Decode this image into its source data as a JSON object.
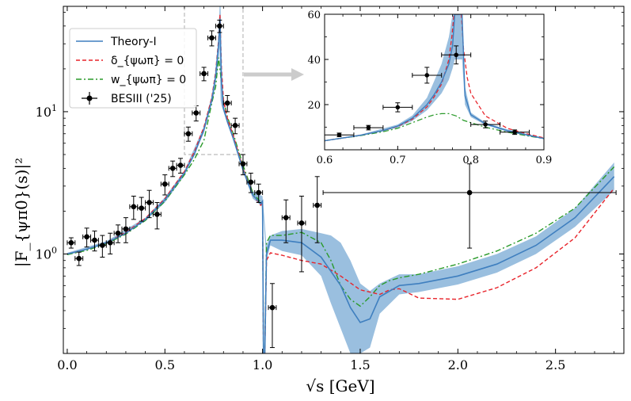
{
  "colors": {
    "theory": "#3f7fbf",
    "band": "#8fb8dc",
    "delta": "#e8232a",
    "w": "#2a9a2a",
    "data": "#000000",
    "guide": "#bbbbbb",
    "arrow": "#cccccc"
  },
  "chart_data": [
    {
      "type": "line",
      "xlabel": "√s [GeV]",
      "ylabel": "|F_{ψπ0}(s)|²",
      "xlim": [
        -0.02,
        2.85
      ],
      "ylim": [
        0.2,
        55
      ],
      "yscale": "log",
      "xticks": [
        0.0,
        0.5,
        1.0,
        1.5,
        2.0,
        2.5
      ],
      "xtick_labels": [
        "0.0",
        "0.5",
        "1.0",
        "1.5",
        "2.0",
        "2.5"
      ],
      "yticks": [
        1,
        10
      ],
      "ytick_labels": [
        "10^0",
        "10^1"
      ],
      "legend": {
        "position": "upper-left",
        "entries": [
          {
            "label": "Theory-I",
            "style": "solid",
            "series": "theory"
          },
          {
            "label": "δ_{ψωπ} = 0",
            "style": "dashed",
            "series": "delta"
          },
          {
            "label": "w_{ψωπ} = 0",
            "style": "dashdot",
            "series": "w"
          },
          {
            "label": "BESIII ('25)",
            "style": "errorbar",
            "series": "data"
          }
        ]
      },
      "series": [
        {
          "name": "Theory-I",
          "x": [
            0.0,
            0.1,
            0.2,
            0.3,
            0.4,
            0.5,
            0.6,
            0.65,
            0.7,
            0.74,
            0.76,
            0.775,
            0.782,
            0.79,
            0.8,
            0.82,
            0.85,
            0.9,
            0.95,
            0.99,
            1.0,
            1.005,
            1.01,
            1.02,
            1.04,
            1.1,
            1.2,
            1.3,
            1.4,
            1.45,
            1.5,
            1.55,
            1.6,
            1.7,
            1.8,
            2.0,
            2.2,
            2.4,
            2.6,
            2.8
          ],
          "y": [
            1.0,
            1.08,
            1.2,
            1.4,
            1.75,
            2.4,
            3.7,
            5.0,
            7.5,
            12.0,
            18.0,
            30.0,
            45.0,
            16.0,
            10.5,
            8.5,
            6.5,
            3.9,
            2.6,
            2.25,
            2.35,
            0.15,
            0.15,
            1.0,
            1.25,
            1.25,
            1.2,
            0.95,
            0.6,
            0.42,
            0.33,
            0.35,
            0.5,
            0.6,
            0.62,
            0.7,
            0.85,
            1.15,
            1.8,
            3.5
          ]
        },
        {
          "name": "δ_{ψωπ} = 0",
          "x": [
            0.0,
            0.1,
            0.2,
            0.3,
            0.4,
            0.5,
            0.6,
            0.65,
            0.7,
            0.74,
            0.76,
            0.775,
            0.782,
            0.79,
            0.8,
            0.82,
            0.85,
            0.9,
            0.95,
            0.99,
            1.0,
            1.005,
            1.01,
            1.02,
            1.04,
            1.1,
            1.2,
            1.3,
            1.4,
            1.5,
            1.6,
            1.65,
            1.7,
            1.8,
            2.0,
            2.2,
            2.4,
            2.6,
            2.8
          ],
          "y": [
            1.0,
            1.08,
            1.2,
            1.42,
            1.78,
            2.45,
            3.8,
            5.2,
            7.8,
            12.5,
            19.0,
            32.0,
            48.0,
            20.0,
            12.0,
            9.0,
            6.8,
            4.0,
            2.6,
            2.2,
            2.3,
            0.15,
            0.15,
            0.9,
            1.02,
            0.98,
            0.9,
            0.85,
            0.7,
            0.56,
            0.52,
            0.56,
            0.57,
            0.49,
            0.48,
            0.58,
            0.8,
            1.3,
            2.9
          ]
        },
        {
          "name": "w_{ψωπ} = 0",
          "x": [
            0.0,
            0.1,
            0.2,
            0.3,
            0.4,
            0.5,
            0.6,
            0.65,
            0.7,
            0.74,
            0.76,
            0.775,
            0.79,
            0.8,
            0.82,
            0.85,
            0.9,
            0.95,
            0.99,
            1.0,
            1.005,
            1.01,
            1.02,
            1.04,
            1.1,
            1.2,
            1.3,
            1.35,
            1.4,
            1.45,
            1.5,
            1.55,
            1.6,
            1.65,
            1.7,
            1.8,
            2.0,
            2.2,
            2.4,
            2.6,
            2.8
          ],
          "y": [
            0.99,
            1.06,
            1.18,
            1.38,
            1.72,
            2.35,
            3.6,
            4.6,
            6.3,
            11.5,
            15.0,
            24.0,
            16.0,
            12.0,
            9.2,
            7.0,
            4.2,
            2.7,
            2.3,
            2.3,
            0.15,
            0.15,
            1.2,
            1.35,
            1.35,
            1.42,
            1.2,
            0.9,
            0.6,
            0.48,
            0.43,
            0.5,
            0.6,
            0.65,
            0.68,
            0.72,
            0.85,
            1.05,
            1.4,
            2.1,
            4.1
          ]
        },
        {
          "name": "BESIII ('25)",
          "x": [
            0.02,
            0.06,
            0.1,
            0.14,
            0.18,
            0.22,
            0.26,
            0.3,
            0.34,
            0.38,
            0.42,
            0.46,
            0.5,
            0.54,
            0.58,
            0.62,
            0.66,
            0.7,
            0.74,
            0.78,
            0.82,
            0.86,
            0.9,
            0.94,
            0.98,
            1.05,
            1.12,
            1.2,
            1.28,
            2.06
          ],
          "y": [
            1.2,
            0.93,
            1.32,
            1.25,
            1.15,
            1.2,
            1.4,
            1.5,
            2.15,
            2.1,
            2.3,
            1.9,
            3.1,
            4.0,
            4.2,
            7.0,
            9.8,
            18.5,
            33.0,
            40.0,
            11.5,
            8.0,
            4.3,
            3.2,
            2.7,
            0.42,
            1.8,
            1.65,
            2.2,
            2.7
          ],
          "yerr_low": [
            0.1,
            0.1,
            0.2,
            0.2,
            0.2,
            0.2,
            0.2,
            0.3,
            0.4,
            0.4,
            0.5,
            0.4,
            0.5,
            0.5,
            0.5,
            0.8,
            1.2,
            2.0,
            4.0,
            4.0,
            1.5,
            1.0,
            0.7,
            0.5,
            0.4,
            0.2,
            0.6,
            0.9,
            1.0,
            1.6
          ],
          "yerr_high": [
            0.1,
            0.1,
            0.2,
            0.2,
            0.2,
            0.2,
            0.2,
            0.3,
            0.4,
            0.4,
            0.5,
            0.4,
            0.5,
            0.5,
            0.5,
            0.8,
            1.2,
            2.0,
            4.0,
            4.0,
            1.5,
            1.0,
            0.7,
            0.5,
            0.4,
            0.2,
            0.6,
            0.9,
            1.3,
            1.6
          ],
          "xerr": [
            0.02,
            0.02,
            0.02,
            0.02,
            0.02,
            0.02,
            0.02,
            0.02,
            0.02,
            0.02,
            0.02,
            0.02,
            0.02,
            0.02,
            0.02,
            0.02,
            0.02,
            0.02,
            0.02,
            0.02,
            0.02,
            0.02,
            0.02,
            0.02,
            0.02,
            0.02,
            0.02,
            0.02,
            0.02,
            0.75
          ]
        }
      ],
      "band": {
        "name": "Theory-I band",
        "x": [
          0.0,
          0.2,
          0.4,
          0.5,
          0.6,
          0.7,
          0.75,
          0.77,
          0.78,
          0.785,
          0.79,
          0.8,
          0.85,
          0.9,
          0.95,
          1.0,
          1.02,
          1.04,
          1.1,
          1.2,
          1.3,
          1.35,
          1.4,
          1.45,
          1.5,
          1.55,
          1.6,
          1.7,
          1.8,
          2.0,
          2.2,
          2.4,
          2.6,
          2.8
        ],
        "low": [
          0.98,
          1.17,
          1.7,
          2.3,
          3.55,
          7.1,
          13.0,
          19.5,
          28.0,
          12.0,
          11.0,
          10.0,
          6.3,
          3.75,
          2.45,
          2.15,
          0.9,
          1.15,
          1.05,
          0.98,
          0.7,
          0.45,
          0.3,
          0.2,
          0.2,
          0.22,
          0.38,
          0.52,
          0.54,
          0.61,
          0.74,
          1.0,
          1.55,
          2.8
        ],
        "high": [
          1.02,
          1.23,
          1.8,
          2.5,
          3.85,
          7.9,
          14.8,
          24.0,
          55.0,
          55.0,
          22.0,
          11.0,
          6.7,
          4.05,
          2.75,
          2.55,
          1.15,
          1.35,
          1.45,
          1.5,
          1.4,
          1.35,
          1.2,
          0.9,
          0.62,
          0.55,
          0.62,
          0.72,
          0.72,
          0.82,
          1.0,
          1.33,
          2.1,
          4.4
        ]
      },
      "zoom_box": {
        "x": [
          0.6,
          0.9
        ],
        "y": [
          5.0,
          55
        ]
      }
    },
    {
      "type": "line",
      "role": "inset",
      "xlim": [
        0.6,
        0.9
      ],
      "ylim": [
        0,
        60
      ],
      "xticks": [
        0.6,
        0.7,
        0.8,
        0.9
      ],
      "xtick_labels": [
        "0.6",
        "0.7",
        "0.8",
        "0.9"
      ],
      "yticks": [
        20,
        40,
        60
      ],
      "ytick_labels": [
        "20",
        "40",
        "60"
      ],
      "series": [
        {
          "name": "Theory-I",
          "x": [
            0.6,
            0.62,
            0.65,
            0.68,
            0.7,
            0.72,
            0.74,
            0.75,
            0.76,
            0.77,
            0.775,
            0.778,
            0.788,
            0.792,
            0.8,
            0.82,
            0.85,
            0.88,
            0.9
          ],
          "y": [
            4.0,
            5.0,
            6.5,
            8.5,
            10.5,
            14.0,
            20.0,
            24.5,
            30.0,
            38.0,
            46.0,
            60.0,
            60.0,
            24.0,
            15.5,
            11.5,
            8.5,
            6.3,
            5.0
          ]
        },
        {
          "name": "δ_{ψωπ} = 0",
          "x": [
            0.6,
            0.62,
            0.65,
            0.68,
            0.7,
            0.72,
            0.74,
            0.75,
            0.76,
            0.77,
            0.774,
            0.777,
            0.787,
            0.79,
            0.795,
            0.8,
            0.82,
            0.85,
            0.88,
            0.9
          ],
          "y": [
            4.0,
            5.0,
            6.5,
            8.5,
            10.3,
            13.5,
            19.0,
            23.5,
            29.0,
            40.0,
            50.0,
            60.0,
            60.0,
            45.0,
            32.0,
            25.0,
            15.0,
            9.5,
            6.8,
            5.3
          ]
        },
        {
          "name": "w_{ψωπ} = 0",
          "x": [
            0.6,
            0.62,
            0.65,
            0.68,
            0.7,
            0.72,
            0.74,
            0.75,
            0.76,
            0.77,
            0.78,
            0.79,
            0.8,
            0.82,
            0.85,
            0.88,
            0.9
          ],
          "y": [
            4.0,
            5.0,
            6.3,
            8.0,
            9.5,
            12.0,
            14.5,
            15.5,
            16.0,
            16.0,
            15.0,
            13.0,
            12.0,
            10.0,
            7.8,
            6.0,
            5.0
          ]
        },
        {
          "name": "BESIII ('25)",
          "x": [
            0.62,
            0.66,
            0.7,
            0.74,
            0.78,
            0.82,
            0.86
          ],
          "y": [
            6.6,
            9.8,
            18.8,
            33.0,
            42.0,
            11.2,
            7.8
          ],
          "yerr": [
            0.8,
            1.0,
            2.0,
            3.5,
            4.0,
            1.5,
            1.0
          ],
          "xerr": [
            0.02,
            0.02,
            0.02,
            0.02,
            0.02,
            0.02,
            0.02
          ]
        }
      ],
      "band": {
        "name": "Theory-I band",
        "x": [
          0.6,
          0.65,
          0.7,
          0.72,
          0.74,
          0.76,
          0.77,
          0.775,
          0.778,
          0.788,
          0.792,
          0.8,
          0.82,
          0.85,
          0.9
        ],
        "low": [
          3.8,
          6.2,
          9.8,
          12.8,
          17.5,
          25.0,
          31.0,
          36.0,
          40.0,
          40.0,
          20.0,
          14.5,
          11.0,
          8.0,
          4.7
        ],
        "high": [
          4.2,
          6.8,
          11.2,
          15.2,
          23.0,
          38.0,
          50.0,
          60.0,
          60.0,
          60.0,
          28.0,
          16.5,
          12.0,
          9.0,
          5.3
        ]
      }
    }
  ]
}
